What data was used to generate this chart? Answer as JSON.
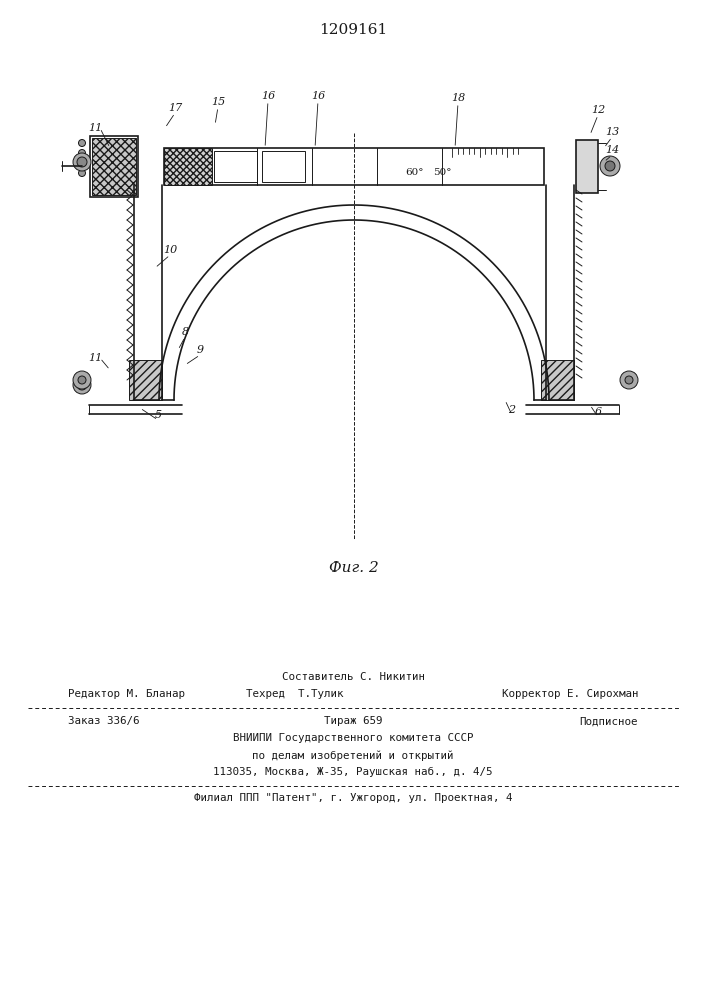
{
  "patent_number": "1209161",
  "fig_label": "Фиг. 2",
  "line_color": "#1a1a1a",
  "footer_line0_center": "Составитель С. Никитин",
  "footer_line1_left": "Редактор М. Бланар",
  "footer_line1_center": "Техред  Т.Тулик",
  "footer_line1_right": "Корректор Е. Сирохман",
  "footer_line2_left": "Заказ 336/6",
  "footer_line2_center": "Тираж 659",
  "footer_line2_right": "Подписное",
  "footer_line3": "ВНИИПИ Государственного комитета СССР",
  "footer_line4": "по делам изобретений и открытий",
  "footer_line5": "113035, Москва, Ж-35, Раушская наб., д. 4/5",
  "footer_line6": "Филиал ППП \"Патент\", г. Ужгород, ул. Проектная, 4"
}
